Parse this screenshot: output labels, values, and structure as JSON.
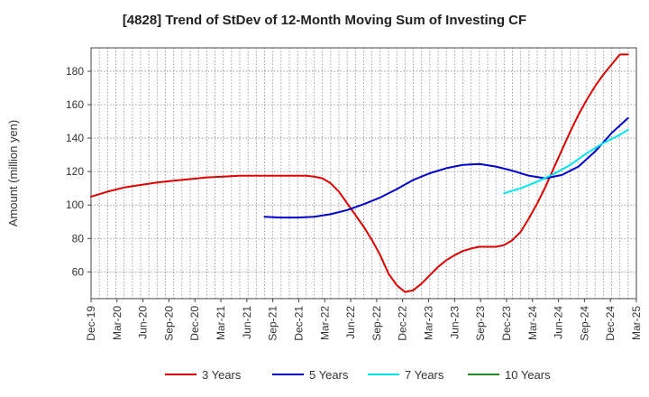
{
  "chart_data": {
    "type": "line",
    "title": "[4828]  Trend of StDev of 12-Month Moving Sum of Investing CF",
    "xlabel": "",
    "ylabel": "Amount (million yen)",
    "ylim": [
      44,
      194
    ],
    "yticks": [
      60,
      80,
      100,
      120,
      140,
      160,
      180
    ],
    "x_tick_labels": [
      "Dec-19",
      "Mar-20",
      "Jun-20",
      "Sep-20",
      "Dec-20",
      "Mar-21",
      "Jun-21",
      "Sep-21",
      "Dec-21",
      "Mar-22",
      "Jun-22",
      "Sep-22",
      "Dec-22",
      "Mar-23",
      "Jun-23",
      "Sep-23",
      "Dec-23",
      "Mar-24",
      "Jun-24",
      "Sep-24",
      "Dec-24",
      "Mar-25"
    ],
    "x_unit": "month index (0 = Dec-19)",
    "xlim": [
      0,
      66
    ],
    "grid": true,
    "legend_position": "bottom",
    "series": [
      {
        "name": "3 Years",
        "color": "#dd0000",
        "x": [
          0,
          2,
          4,
          6,
          8,
          10,
          12,
          14,
          16,
          18,
          20,
          22,
          24,
          25,
          26,
          27,
          28,
          29,
          30,
          31,
          32,
          33,
          34,
          35,
          36,
          37,
          38,
          39,
          40,
          41,
          42,
          43,
          44,
          45,
          46,
          47,
          48,
          49,
          50,
          51,
          52,
          53,
          54,
          55,
          56,
          57,
          58,
          59,
          60,
          61,
          62,
          63,
          64,
          65
        ],
        "y": [
          105,
          108,
          110.5,
          112,
          113.5,
          114.5,
          115.5,
          116.5,
          117,
          117.5,
          117.5,
          117.5,
          117.5,
          117.5,
          117.5,
          117,
          116,
          113,
          108,
          101,
          94,
          87,
          79,
          70,
          59,
          52,
          48,
          49,
          53,
          58,
          63,
          67,
          70,
          72.5,
          74,
          75,
          75,
          75,
          76,
          79,
          84,
          92,
          101,
          111,
          122,
          133,
          144,
          154,
          163,
          171,
          178,
          184,
          190,
          190
        ],
        "x_plot_end": 65
      },
      {
        "name": "5 Years",
        "color": "#0000cc",
        "x": [
          21,
          23,
          25,
          27,
          29,
          31,
          33,
          35,
          37,
          39,
          41,
          43,
          45,
          47,
          49,
          51,
          53,
          55,
          57,
          59,
          61,
          63,
          65
        ],
        "y": [
          93,
          92.5,
          92.5,
          93,
          94.5,
          97,
          100.5,
          104.5,
          109.5,
          115,
          119,
          122,
          124,
          124.5,
          123,
          120.5,
          117.5,
          116,
          118,
          123,
          132,
          143,
          152
        ]
      },
      {
        "name": "7 Years",
        "color": "#00e5ee",
        "x": [
          50,
          52,
          54,
          56,
          58,
          60,
          62,
          64,
          65
        ],
        "y": [
          107,
          110,
          114,
          118.5,
          124,
          131,
          137,
          142,
          145
        ]
      },
      {
        "name": "10 Years",
        "color": "#228b22",
        "x": [],
        "y": []
      }
    ]
  }
}
